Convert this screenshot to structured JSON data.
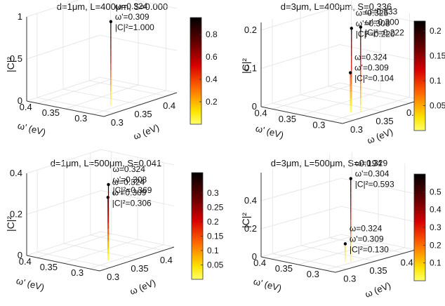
{
  "chart_data": [
    {
      "type": "scatter",
      "subtype": "3d-stem",
      "title": "d=1μm, L=400μm, S=0.000",
      "xlabel": "ω (eV)",
      "ylabel": "ω' (eV)",
      "zlabel": "|C|²",
      "x_ticks": [
        "0.3",
        "0.35",
        "0.4"
      ],
      "y_ticks": [
        "0.3",
        "0.35",
        "0.4"
      ],
      "z_ticks": [
        "0",
        "0.5",
        "1"
      ],
      "xlim": [
        0.28,
        0.42
      ],
      "ylim": [
        0.28,
        0.42
      ],
      "zlim": [
        0,
        1
      ],
      "points": [
        {
          "x": 0.324,
          "y": 0.309,
          "z": 1.0,
          "labels": [
            "ω=0.324",
            "ω'=0.309",
            "|C|²=1.000"
          ]
        }
      ],
      "colorbar": {
        "range": [
          0,
          0.95
        ],
        "ticks": [
          "0.2",
          "0.4",
          "0.6",
          "0.8"
        ],
        "tick_values": [
          0.2,
          0.4,
          0.6,
          0.8
        ],
        "colormap": "hot"
      },
      "grid": true
    },
    {
      "type": "scatter",
      "subtype": "3d-stem",
      "title": "d=3μm, L=400μm, S=0.336",
      "xlabel": "ω (eV)",
      "ylabel": "ω' (eV)",
      "zlabel": "|C|²",
      "x_ticks": [
        "0.3",
        "0.35",
        "0.4"
      ],
      "y_ticks": [
        "0.3",
        "0.35",
        "0.4"
      ],
      "z_ticks": [
        "0",
        "0.1",
        "0.2"
      ],
      "xlim": [
        0.28,
        0.42
      ],
      "ylim": [
        0.28,
        0.42
      ],
      "zlim": [
        0,
        0.22
      ],
      "points": [
        {
          "x": 0.325,
          "y": 0.308,
          "z": 0.22,
          "labels": [
            "ω=0.325",
            "ω'=0.308",
            "|C|²=0.220"
          ]
        },
        {
          "x": 0.333,
          "y": 0.3,
          "z": 0.222,
          "labels": [
            "ω=0.333",
            "ω'=0.300",
            "|C|²=0.222"
          ]
        },
        {
          "x": 0.324,
          "y": 0.309,
          "z": 0.104,
          "labels": [
            "ω=0.324",
            "ω'=0.309",
            "|C|²=0.104"
          ]
        }
      ],
      "colorbar": {
        "range": [
          0,
          0.22
        ],
        "ticks": [
          "0.05",
          "0.1",
          "0.15",
          "0.2"
        ],
        "tick_values": [
          0.05,
          0.1,
          0.15,
          0.2
        ],
        "colormap": "hot"
      },
      "grid": true
    },
    {
      "type": "scatter",
      "subtype": "3d-stem",
      "title": "d=1μm, L=500μm, S=0.041",
      "xlabel": "ω (eV)",
      "ylabel": "ω' (eV)",
      "zlabel": "|C|²",
      "x_ticks": [
        "0.3",
        "0.35",
        "0.4"
      ],
      "y_ticks": [
        "0.3",
        "0.35",
        "0.4"
      ],
      "z_ticks": [
        "0",
        "0.2",
        "0.4"
      ],
      "xlim": [
        0.28,
        0.42
      ],
      "ylim": [
        0.28,
        0.42
      ],
      "zlim": [
        0,
        0.4
      ],
      "points": [
        {
          "x": 0.324,
          "y": 0.309,
          "z": 0.306,
          "labels": [
            "ω=0.324",
            "ω'=0.309",
            "|C|²=0.306"
          ]
        },
        {
          "x": 0.324,
          "y": 0.308,
          "z": 0.369,
          "labels": [
            "ω=0.324",
            "ω'=0.308",
            "|C|²=0.369"
          ]
        }
      ],
      "colorbar": {
        "range": [
          0,
          0.37
        ],
        "ticks": [
          "0.05",
          "0.1",
          "0.15",
          "0.2",
          "0.25",
          "0.3"
        ],
        "tick_values": [
          0.05,
          0.1,
          0.15,
          0.2,
          0.25,
          0.3
        ],
        "colormap": "hot"
      },
      "grid": true
    },
    {
      "type": "scatter",
      "subtype": "3d-stem",
      "title": "d=3μm, L=500μm, S=0.194",
      "xlabel": "ω (eV)",
      "ylabel": "ω' (eV)",
      "zlabel": "|C|²",
      "x_ticks": [
        "0.3",
        "0.35",
        "0.4"
      ],
      "y_ticks": [
        "0.3",
        "0.35",
        "0.4"
      ],
      "z_ticks": [
        "0",
        "0.2",
        "0.4"
      ],
      "xlim": [
        0.28,
        0.42
      ],
      "ylim": [
        0.28,
        0.42
      ],
      "zlim": [
        0,
        0.6
      ],
      "points": [
        {
          "x": 0.329,
          "y": 0.304,
          "z": 0.593,
          "labels": [
            "ω=0.329",
            "ω'=0.304",
            "|C|²=0.593"
          ]
        },
        {
          "x": 0.324,
          "y": 0.309,
          "z": 0.13,
          "labels": [
            "ω=0.324",
            "ω'=0.309",
            "|C|²=0.130"
          ]
        }
      ],
      "colorbar": {
        "range": [
          0,
          0.6
        ],
        "ticks": [
          "0.1",
          "0.2",
          "0.3",
          "0.4",
          "0.5"
        ],
        "tick_values": [
          0.1,
          0.2,
          0.3,
          0.4,
          0.5
        ],
        "colormap": "hot"
      },
      "grid": true
    }
  ]
}
